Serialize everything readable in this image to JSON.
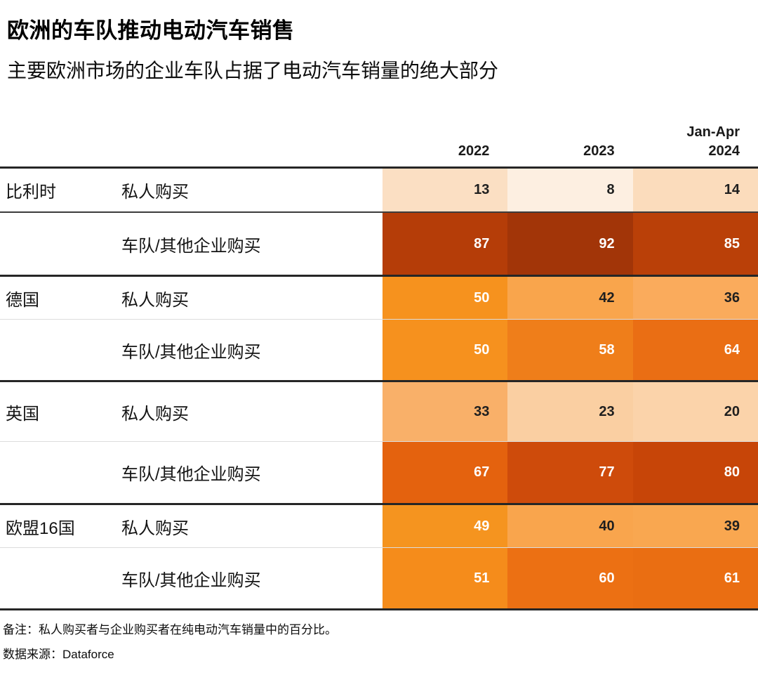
{
  "page": {
    "title": "欧洲的车队推动电动汽车销售",
    "subtitle": "主要欧洲市场的企业车队占据了电动汽车销量的绝大部分",
    "note": "备注：私人购买者与企业购买者在纯电动汽车销量中的百分比。",
    "source": "数据来源：Dataforce"
  },
  "header": {
    "columns": [
      {
        "line1": "",
        "line2": "2022"
      },
      {
        "line1": "",
        "line2": "2023"
      },
      {
        "line1": "Jan-Apr",
        "line2": "2024"
      }
    ]
  },
  "colors": {
    "text_dark": "#1f1f1f",
    "text_light": "#ffffff",
    "rule_heavy": "#262626",
    "rule_light": "#dcdcdc",
    "rule_belgium_inner": "#3c3c3c"
  },
  "chart_data": {
    "type": "heatmap",
    "title": "欧洲的车队推动电动汽车销售",
    "subtitle": "主要欧洲市场的企业车队占据了电动汽车销量的绝大部分",
    "columns": [
      "2022",
      "2023",
      "Jan-Apr 2024"
    ],
    "value_unit": "percent",
    "value_range": [
      0,
      100
    ],
    "text_color_threshold": 45,
    "groups": [
      {
        "country": "比利时",
        "rows": [
          {
            "label": "私人购买",
            "values": [
              13,
              8,
              14
            ],
            "colors": [
              "#FBDFC3",
              "#FDEFE1",
              "#FBDCBC"
            ]
          },
          {
            "label": "车队/其他企业购买",
            "values": [
              87,
              92,
              85
            ],
            "colors": [
              "#B53D08",
              "#A23508",
              "#BA4008"
            ]
          }
        ]
      },
      {
        "country": "德国",
        "rows": [
          {
            "label": "私人购买",
            "values": [
              50,
              42,
              36
            ],
            "colors": [
              "#F6921E",
              "#F9A54C",
              "#FAAB5C"
            ]
          },
          {
            "label": "车队/其他企业购买",
            "values": [
              50,
              58,
              64
            ],
            "colors": [
              "#F6911E",
              "#EF7E1A",
              "#EA6E14"
            ]
          }
        ]
      },
      {
        "country": "英国",
        "rows": [
          {
            "label": "私人购买",
            "values": [
              33,
              23,
              20
            ],
            "colors": [
              "#F9B069",
              "#FACFA2",
              "#FBD3AA"
            ]
          },
          {
            "label": "车队/其他企业购买",
            "values": [
              67,
              77,
              80
            ],
            "colors": [
              "#E4620E",
              "#CE4B0B",
              "#C74508"
            ]
          }
        ]
      },
      {
        "country": "欧盟16国",
        "rows": [
          {
            "label": "私人购买",
            "values": [
              49,
              40,
              39
            ],
            "colors": [
              "#F5941F",
              "#F9A54D",
              "#F9A750"
            ]
          },
          {
            "label": "车队/其他企业购买",
            "values": [
              51,
              60,
              61
            ],
            "colors": [
              "#F58C1B",
              "#EC7013",
              "#EA6E12"
            ]
          }
        ]
      }
    ],
    "note": "备注：私人购买者与企业购买者在纯电动汽车销量中的百分比。",
    "source": "数据来源：Dataforce"
  }
}
